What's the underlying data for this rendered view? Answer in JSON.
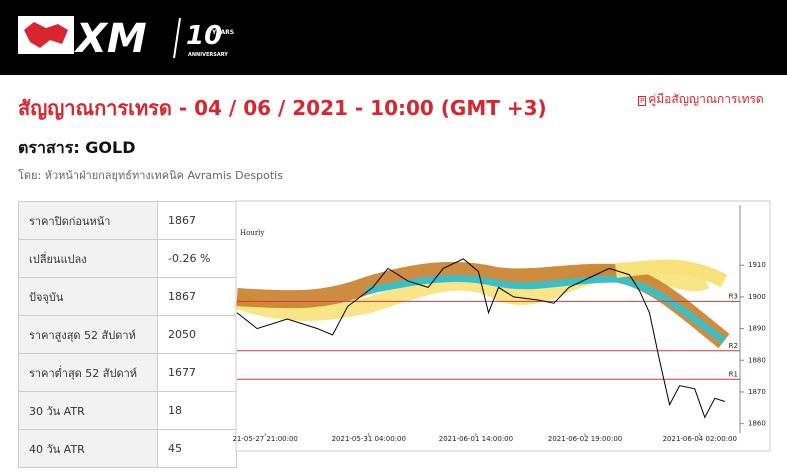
{
  "header": {
    "logo": "XM",
    "badge_years": "10",
    "badge_text1": "YEARS",
    "badge_text2": "ANNIVERSARY"
  },
  "page": {
    "title": "สัญญาณการเทรด - 04 / 06 / 2021 - 10:00 (GMT +3)",
    "guide_link": "คู่มือสัญญาณการเทรด",
    "instrument": "ตราสาร: GOLD",
    "author": "โดย: หัวหน้าฝ่ายกลยุทธ์ทางเทคนิค Avramis Despotis"
  },
  "table": {
    "rows": [
      [
        "ราคาปิดก่อนหน้า",
        "1867"
      ],
      [
        "เปลี่ยนแปลง",
        "-0.26 %"
      ],
      [
        "ปัจจุบัน",
        "1867"
      ],
      [
        "ราคาสูงสุด 52 สัปดาห์",
        "2050"
      ],
      [
        "ราคาต่ำสุด 52 สัปดาห์",
        "1677"
      ],
      [
        "30 วัน ATR",
        "18"
      ],
      [
        "40 วัน ATR",
        "45"
      ]
    ]
  },
  "chart_data": {
    "type": "line",
    "title": "Hourly",
    "x": [
      0,
      4,
      10,
      16,
      19,
      22,
      27,
      30,
      34,
      38,
      41,
      45,
      48,
      50,
      52,
      55,
      60,
      63,
      66,
      70,
      74,
      78,
      80,
      82,
      84,
      86,
      88,
      91,
      93,
      95,
      97
    ],
    "values": [
      1895,
      1890,
      1893,
      1890,
      1888,
      1897,
      1903,
      1909,
      1905,
      1903,
      1909,
      1912,
      1908,
      1895,
      1903,
      1900,
      1899,
      1898,
      1903,
      1906,
      1909,
      1907,
      1902,
      1895,
      1880,
      1866,
      1872,
      1871,
      1862,
      1868,
      1867
    ],
    "color": "#000000",
    "xlim": [
      0,
      100
    ],
    "ylim": [
      1858,
      1929
    ],
    "yticks": [
      1860,
      1870,
      1880,
      1890,
      1900,
      1910
    ],
    "xticks": [
      {
        "value": 5.6,
        "label": "21-05-27 21:00:00"
      },
      {
        "value": 26.2,
        "label": "2021-05-31 04:00:00"
      },
      {
        "value": 47.5,
        "label": "2021-06-01 14:00:00"
      },
      {
        "value": 69.2,
        "label": "2021-06-02 19:00:00"
      },
      {
        "value": 92,
        "label": "2021-06-04 02:00:00"
      }
    ],
    "levels": [
      {
        "name": "R3",
        "value": 1898.6
      },
      {
        "name": "R2",
        "value": 1883
      },
      {
        "name": "R1",
        "value": 1874
      }
    ],
    "level_color": "#d9363e"
  }
}
